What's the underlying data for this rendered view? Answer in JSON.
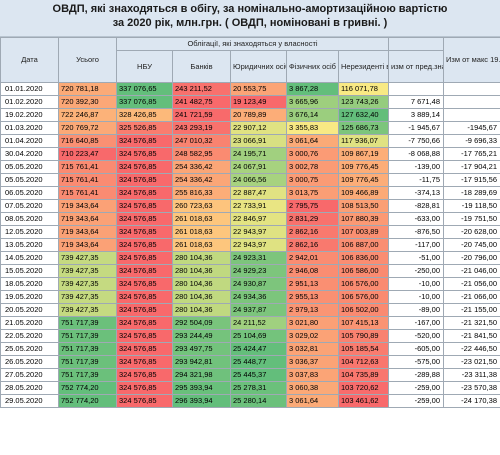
{
  "title": {
    "line1": "ОВДП, які знаходяться в обігу, за номінально-амортизаційною вартістю",
    "line2": "за 2020 рік, млн.грн.  ( ОВДП, номіновані в гривні. )"
  },
  "headers": {
    "date": "Дата",
    "total": "Усього",
    "group": "Облігації, які знаходяться у власності",
    "nbu": "НБУ",
    "banks": "Банків",
    "legal": "Юридичних осіб",
    "individuals": "Фізичних осіб",
    "nonresidents": "Нерезиденті в",
    "from_prev": "изм от пред.знач",
    "from_max": "Изм от макс 19.02.20"
  },
  "colors": {
    "header": "#dce6f1",
    "green": "#63be7b",
    "yellow": "#ffeb84",
    "red": "#f8696b"
  },
  "rows": [
    {
      "date": "01.01.2020",
      "total": "720 781,18",
      "nbu": "337 076,65",
      "banks": "243 211,52",
      "legal": "20 553,75",
      "individuals": "3 867,28",
      "nonresidents": "116 071,78",
      "from_prev": "",
      "from_max": ""
    },
    {
      "date": "01.02.2020",
      "total": "720 392,30",
      "nbu": "337 076,85",
      "banks": "241 482,75",
      "legal": "19 123,49",
      "individuals": "3 665,96",
      "nonresidents": "123 743,26",
      "from_prev": "7 671,48",
      "from_max": ""
    },
    {
      "date": "19.02.2020",
      "total": "722 246,87",
      "nbu": "328 426,85",
      "banks": "241 721,59",
      "legal": "20 789,89",
      "individuals": "3 676,14",
      "nonresidents": "127 632,40",
      "from_prev": "3 889,14",
      "from_max": ""
    },
    {
      "date": "01.03.2020",
      "total": "720 769,72",
      "nbu": "325 526,85",
      "banks": "243 293,19",
      "legal": "22 907,12",
      "individuals": "3 355,83",
      "nonresidents": "125 686,73",
      "from_prev": "-1 945,67",
      "from_max": "-1945,67"
    },
    {
      "date": "01.04.2020",
      "total": "716 640,85",
      "nbu": "324 576,85",
      "banks": "247 010,32",
      "legal": "23 066,91",
      "individuals": "3 061,64",
      "nonresidents": "117 936,07",
      "from_prev": "-7 750,66",
      "from_max": "-9 696,33"
    },
    {
      "date": "30.04.2020",
      "total": "710 223,47",
      "nbu": "324 576,85",
      "banks": "248 582,95",
      "legal": "24 195,71",
      "individuals": "3 000,76",
      "nonresidents": "109 867,19",
      "from_prev": "-8 068,88",
      "from_max": "-17 765,21"
    },
    {
      "date": "05.05.2020",
      "total": "715 761,41",
      "nbu": "324 576,85",
      "banks": "254 336,42",
      "legal": "24 067,91",
      "individuals": "3 002,78",
      "nonresidents": "109 776,45",
      "from_prev": "-139,00",
      "from_max": "-17 904,21"
    },
    {
      "date": "05.05.2020",
      "total": "715 761,41",
      "nbu": "324 576,85",
      "banks": "254 336,42",
      "legal": "24 066,56",
      "individuals": "3 000,75",
      "nonresidents": "109 776,45",
      "from_prev": "-11,75",
      "from_max": "-17 915,56"
    },
    {
      "date": "06.05.2020",
      "total": "715 761,41",
      "nbu": "324 576,85",
      "banks": "255 816,33",
      "legal": "22 887,47",
      "individuals": "3 013,75",
      "nonresidents": "109 466,89",
      "from_prev": "-374,13",
      "from_max": "-18 289,69"
    },
    {
      "date": "07.05.2020",
      "total": "719 343,64",
      "nbu": "324 576,85",
      "banks": "260 723,63",
      "legal": "22 733,91",
      "individuals": "2 795,75",
      "nonresidents": "108 513,50",
      "from_prev": "-828,81",
      "from_max": "-19 118,50"
    },
    {
      "date": "08.05.2020",
      "total": "719 343,64",
      "nbu": "324 576,85",
      "banks": "261 018,63",
      "legal": "22 846,97",
      "individuals": "2 831,29",
      "nonresidents": "107 880,39",
      "from_prev": "-633,00",
      "from_max": "-19 751,50"
    },
    {
      "date": "12.05.2020",
      "total": "719 343,64",
      "nbu": "324 576,85",
      "banks": "261 018,63",
      "legal": "22 943,97",
      "individuals": "2 862,16",
      "nonresidents": "107 003,89",
      "from_prev": "-876,50",
      "from_max": "-20 628,00"
    },
    {
      "date": "13.05.2020",
      "total": "719 343,64",
      "nbu": "324 576,85",
      "banks": "261 018,63",
      "legal": "22 943,97",
      "individuals": "2 862,16",
      "nonresidents": "106 887,00",
      "from_prev": "-117,00",
      "from_max": "-20 745,00"
    },
    {
      "date": "14.05.2020",
      "total": "739 427,35",
      "nbu": "324 576,85",
      "banks": "280 104,36",
      "legal": "24 923,31",
      "individuals": "2 942,01",
      "nonresidents": "106 836,00",
      "from_prev": "-51,00",
      "from_max": "-20 796,00"
    },
    {
      "date": "15.05.2020",
      "total": "739 427,35",
      "nbu": "324 576,85",
      "banks": "280 104,36",
      "legal": "24 929,23",
      "individuals": "2 946,08",
      "nonresidents": "106 586,00",
      "from_prev": "-250,00",
      "from_max": "-21 046,00"
    },
    {
      "date": "18.05.2020",
      "total": "739 427,35",
      "nbu": "324 576,85",
      "banks": "280 104,36",
      "legal": "24 930,87",
      "individuals": "2 951,13",
      "nonresidents": "106 576,00",
      "from_prev": "-10,00",
      "from_max": "-21 056,00"
    },
    {
      "date": "19.05.2020",
      "total": "739 427,35",
      "nbu": "324 576,85",
      "banks": "280 104,36",
      "legal": "24 934,36",
      "individuals": "2 955,13",
      "nonresidents": "106 576,00",
      "from_prev": "-10,00",
      "from_max": "-21 066,00"
    },
    {
      "date": "20.05.2020",
      "total": "739 427,35",
      "nbu": "324 576,85",
      "banks": "280 104,36",
      "legal": "24 937,87",
      "individuals": "2 979,13",
      "nonresidents": "106 502,00",
      "from_prev": "-89,00",
      "from_max": "-21 155,00"
    },
    {
      "date": "21.05.2020",
      "total": "751 717,39",
      "nbu": "324 576,85",
      "banks": "292 504,09",
      "legal": "24 211,52",
      "individuals": "3 021,80",
      "nonresidents": "107 415,13",
      "from_prev": "-167,00",
      "from_max": "-21 321,50"
    },
    {
      "date": "22.05.2020",
      "total": "751 717,39",
      "nbu": "324 576,85",
      "banks": "293 244,49",
      "legal": "25 104,69",
      "individuals": "3 029,02",
      "nonresidents": "105 790,89",
      "from_prev": "-520,00",
      "from_max": "-21 841,50"
    },
    {
      "date": "25.05.2020",
      "total": "751 717,39",
      "nbu": "324 576,85",
      "banks": "293 497,75",
      "legal": "25 424,47",
      "individuals": "3 032,81",
      "nonresidents": "105 185,54",
      "from_prev": "-605,00",
      "from_max": "-22 446,50"
    },
    {
      "date": "26.05.2020",
      "total": "751 717,39",
      "nbu": "324 576,85",
      "banks": "293 942,81",
      "legal": "25 448,77",
      "individuals": "3 036,37",
      "nonresidents": "104 712,63",
      "from_prev": "-575,00",
      "from_max": "-23 021,50"
    },
    {
      "date": "27.05.2020",
      "total": "751 717,39",
      "nbu": "324 576,85",
      "banks": "294 321,98",
      "legal": "25 445,37",
      "individuals": "3 037,83",
      "nonresidents": "104 735,89",
      "from_prev": "-289,88",
      "from_max": "-23 311,38"
    },
    {
      "date": "28.05.2020",
      "total": "752 774,20",
      "nbu": "324 576,85",
      "banks": "295 393,94",
      "legal": "25 278,31",
      "individuals": "3 060,38",
      "nonresidents": "103 720,62",
      "from_prev": "-259,00",
      "from_max": "-23 570,38"
    },
    {
      "date": "29.05.2020",
      "total": "752 774,20",
      "nbu": "324 576,85",
      "banks": "296 393,94",
      "legal": "25 280,14",
      "individuals": "3 061,64",
      "nonresidents": "103 461,62",
      "from_prev": "-259,00",
      "from_max": "-24 170,38"
    }
  ]
}
